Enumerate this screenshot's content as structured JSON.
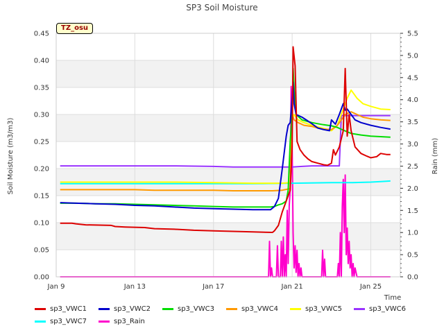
{
  "chart_data": {
    "type": "line",
    "title": "SP3 Soil Moisture",
    "badge": "TZ_osu",
    "xlabel": "Time",
    "ylabel": "Soil Moisture (m3/m3)",
    "y2label": "Rain (mm)",
    "xlim": [
      0,
      17.5
    ],
    "ylim": [
      0.0,
      0.45
    ],
    "y2lim": [
      0.0,
      5.5
    ],
    "xticks": [
      {
        "x": 0,
        "label": "Jan 9"
      },
      {
        "x": 4,
        "label": "Jan 13"
      },
      {
        "x": 8,
        "label": "Jan 17"
      },
      {
        "x": 12,
        "label": "Jan 21"
      },
      {
        "x": 16,
        "label": "Jan 25"
      }
    ],
    "yticks": [
      "0.00",
      "0.05",
      "0.10",
      "0.15",
      "0.20",
      "0.25",
      "0.30",
      "0.35",
      "0.40",
      "0.45"
    ],
    "y2ticks": [
      "0.0",
      "0.5",
      "1.0",
      "1.5",
      "2.0",
      "2.5",
      "3.0",
      "3.5",
      "4.0",
      "4.5",
      "5.0",
      "5.5"
    ],
    "grid": true,
    "legend_position": "bottom",
    "series": [
      {
        "name": "sp3_VWC1",
        "color": "#dd0000",
        "axis": "left",
        "x": [
          0.2,
          0.8,
          1.0,
          1.5,
          2.8,
          3.0,
          3.5,
          4.5,
          5.0,
          6.0,
          7.0,
          8.0,
          9.0,
          10.0,
          11.0,
          11.1,
          11.3,
          11.5,
          11.7,
          11.9,
          12.0,
          12.05,
          12.15,
          12.25,
          12.4,
          12.6,
          12.8,
          13.0,
          13.3,
          13.6,
          13.8,
          14.0,
          14.1,
          14.2,
          14.4,
          14.6,
          14.7,
          14.8,
          14.9,
          15.0,
          15.2,
          15.5,
          15.8,
          16.0,
          16.3,
          16.5,
          16.8,
          17.0
        ],
        "y": [
          0.099,
          0.099,
          0.098,
          0.096,
          0.095,
          0.093,
          0.092,
          0.091,
          0.089,
          0.088,
          0.086,
          0.085,
          0.084,
          0.083,
          0.082,
          0.085,
          0.095,
          0.12,
          0.14,
          0.16,
          0.24,
          0.425,
          0.39,
          0.25,
          0.235,
          0.225,
          0.218,
          0.213,
          0.21,
          0.207,
          0.206,
          0.21,
          0.235,
          0.225,
          0.24,
          0.27,
          0.385,
          0.26,
          0.3,
          0.27,
          0.24,
          0.228,
          0.223,
          0.22,
          0.222,
          0.228,
          0.226,
          0.226
        ]
      },
      {
        "name": "sp3_VWC2",
        "color": "#0000cc",
        "axis": "left",
        "x": [
          0.2,
          1.0,
          2.0,
          3.0,
          4.0,
          5.0,
          6.0,
          7.0,
          8.0,
          9.0,
          10.0,
          10.9,
          11.1,
          11.3,
          11.5,
          11.7,
          11.8,
          11.9,
          12.0,
          12.05,
          12.1,
          12.2,
          12.5,
          12.8,
          13.0,
          13.3,
          13.6,
          13.9,
          14.0,
          14.2,
          14.4,
          14.6,
          14.7,
          14.8,
          14.9,
          15.0,
          15.2,
          15.5,
          16.0,
          16.5,
          17.0
        ],
        "y": [
          0.137,
          0.136,
          0.135,
          0.134,
          0.132,
          0.131,
          0.129,
          0.127,
          0.126,
          0.125,
          0.124,
          0.124,
          0.13,
          0.145,
          0.2,
          0.26,
          0.28,
          0.285,
          0.33,
          0.36,
          0.32,
          0.3,
          0.295,
          0.288,
          0.283,
          0.275,
          0.272,
          0.27,
          0.29,
          0.282,
          0.3,
          0.32,
          0.308,
          0.31,
          0.305,
          0.3,
          0.29,
          0.285,
          0.28,
          0.276,
          0.273
        ]
      },
      {
        "name": "sp3_VWC3",
        "color": "#00dd00",
        "axis": "left",
        "x": [
          0.2,
          1.0,
          2.0,
          3.0,
          4.0,
          5.0,
          6.0,
          7.0,
          8.0,
          9.0,
          10.0,
          10.9,
          11.1,
          11.3,
          11.5,
          11.7,
          11.8,
          11.9,
          12.0,
          12.05,
          12.1,
          12.2,
          12.5,
          12.8,
          13.0,
          13.3,
          13.6,
          14.0,
          14.3,
          14.6,
          15.0,
          15.5,
          16.0,
          16.5,
          17.0
        ],
        "y": [
          0.136,
          0.136,
          0.135,
          0.135,
          0.134,
          0.133,
          0.132,
          0.131,
          0.13,
          0.129,
          0.129,
          0.129,
          0.13,
          0.133,
          0.135,
          0.14,
          0.16,
          0.25,
          0.3,
          0.385,
          0.35,
          0.3,
          0.29,
          0.287,
          0.285,
          0.283,
          0.281,
          0.279,
          0.276,
          0.271,
          0.265,
          0.262,
          0.26,
          0.259,
          0.258
        ]
      },
      {
        "name": "sp3_VWC4",
        "color": "#ff9900",
        "axis": "left",
        "x": [
          0.2,
          1.0,
          2.0,
          3.0,
          4.0,
          5.0,
          6.0,
          7.0,
          8.0,
          9.0,
          10.0,
          11.0,
          11.5,
          11.9,
          12.0,
          12.05,
          12.1,
          12.3,
          12.6,
          13.0,
          13.3,
          13.6,
          14.0,
          14.3,
          14.5,
          14.7,
          15.0,
          15.3,
          15.6,
          16.0,
          16.5,
          17.0
        ],
        "y": [
          0.161,
          0.161,
          0.161,
          0.161,
          0.161,
          0.16,
          0.16,
          0.16,
          0.16,
          0.159,
          0.159,
          0.159,
          0.16,
          0.163,
          0.29,
          0.295,
          0.29,
          0.285,
          0.28,
          0.278,
          0.275,
          0.273,
          0.272,
          0.28,
          0.29,
          0.3,
          0.305,
          0.3,
          0.295,
          0.292,
          0.29,
          0.289
        ]
      },
      {
        "name": "sp3_VWC5",
        "color": "#ffff00",
        "axis": "left",
        "x": [
          0.2,
          2.0,
          4.0,
          6.0,
          8.0,
          10.0,
          11.5,
          11.9,
          12.0,
          12.1,
          12.3,
          12.6,
          13.0,
          13.5,
          14.0,
          14.3,
          14.6,
          14.8,
          15.0,
          15.1,
          15.3,
          15.6,
          16.0,
          16.5,
          17.0
        ],
        "y": [
          0.175,
          0.175,
          0.175,
          0.175,
          0.174,
          0.173,
          0.173,
          0.174,
          0.29,
          0.3,
          0.29,
          0.285,
          0.28,
          0.275,
          0.27,
          0.28,
          0.31,
          0.33,
          0.345,
          0.34,
          0.33,
          0.32,
          0.315,
          0.31,
          0.309
        ]
      },
      {
        "name": "sp3_VWC6",
        "color": "#9933ff",
        "axis": "left",
        "x": [
          0.2,
          2.0,
          4.0,
          6.0,
          8.0,
          9.0,
          10.0,
          11.0,
          11.5,
          12.0,
          12.5,
          13.0,
          13.5,
          14.0,
          14.4,
          14.5,
          15.0,
          16.0,
          17.0
        ],
        "y": [
          0.205,
          0.205,
          0.205,
          0.205,
          0.204,
          0.203,
          0.203,
          0.203,
          0.203,
          0.203,
          0.204,
          0.205,
          0.205,
          0.205,
          0.205,
          0.298,
          0.298,
          0.298,
          0.298
        ]
      },
      {
        "name": "sp3_VWC7",
        "color": "#00ffff",
        "axis": "left",
        "x": [
          0.2,
          2.0,
          4.0,
          6.0,
          8.0,
          10.0,
          12.0,
          14.0,
          15.0,
          16.0,
          16.5,
          17.0
        ],
        "y": [
          0.172,
          0.172,
          0.172,
          0.172,
          0.172,
          0.172,
          0.173,
          0.174,
          0.174,
          0.175,
          0.176,
          0.177
        ]
      },
      {
        "name": "sp3_Rain",
        "color": "#ff00cc",
        "axis": "right",
        "x": [
          0.2,
          10.8,
          10.85,
          10.9,
          10.95,
          11.0,
          11.05,
          11.1,
          11.2,
          11.25,
          11.3,
          11.4,
          11.45,
          11.5,
          11.55,
          11.6,
          11.65,
          11.7,
          11.75,
          11.8,
          11.85,
          11.9,
          11.95,
          12.0,
          12.05,
          12.1,
          12.15,
          12.2,
          12.25,
          12.3,
          12.35,
          12.4,
          12.45,
          12.5,
          12.6,
          13.5,
          13.55,
          13.6,
          13.65,
          13.7,
          13.75,
          13.8,
          14.3,
          14.35,
          14.4,
          14.45,
          14.5,
          14.55,
          14.6,
          14.65,
          14.7,
          14.75,
          14.8,
          14.85,
          14.9,
          14.95,
          15.0,
          15.05,
          15.1,
          15.15,
          15.2,
          15.3,
          17.0
        ],
        "y": [
          0.0,
          0.0,
          0.8,
          0.0,
          0.2,
          0.0,
          0.0,
          0.0,
          0.0,
          0.7,
          0.0,
          0.0,
          0.8,
          0.0,
          0.9,
          0.0,
          0.5,
          0.0,
          1.5,
          0.3,
          1.6,
          2.0,
          4.3,
          3.0,
          1.0,
          0.2,
          0.7,
          0.1,
          0.6,
          0.0,
          0.3,
          0.0,
          0.2,
          0.0,
          0.0,
          0.0,
          0.6,
          0.0,
          0.4,
          0.0,
          0.0,
          0.0,
          0.0,
          0.3,
          0.0,
          1.0,
          0.0,
          1.6,
          2.2,
          1.0,
          2.3,
          0.5,
          1.1,
          0.3,
          0.8,
          0.2,
          0.5,
          0.0,
          0.3,
          0.0,
          0.2,
          0.0,
          0.0
        ]
      }
    ]
  }
}
